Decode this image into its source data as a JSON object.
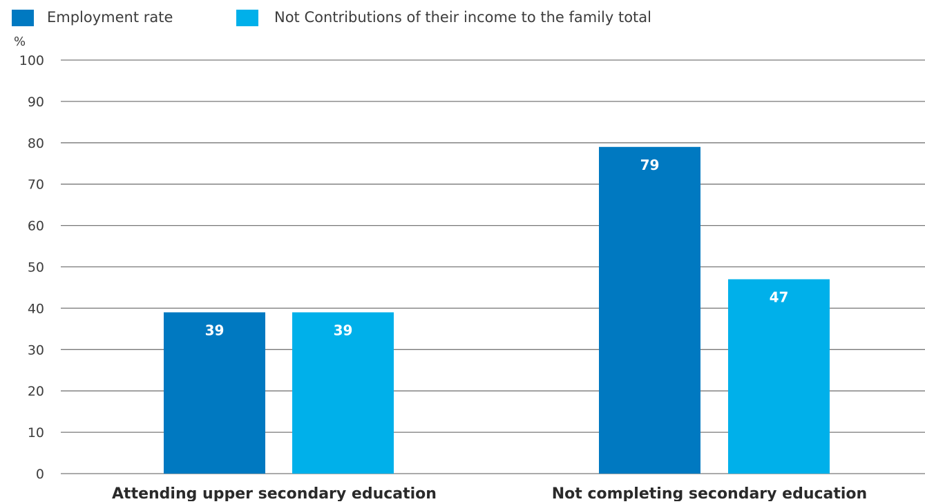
{
  "chart_data": {
    "type": "bar",
    "ylabel": "%",
    "ylim": [
      0,
      100
    ],
    "yticks": [
      0,
      10,
      20,
      30,
      40,
      50,
      60,
      70,
      80,
      90,
      100
    ],
    "grid": true,
    "legend_position": "top-left",
    "categories": [
      "Attending upper secondary education",
      "Not completing secondary education"
    ],
    "series": [
      {
        "name": "Employment rate",
        "values": [
          39,
          79
        ],
        "labels": [
          "39",
          "79"
        ],
        "color": "#0079c1"
      },
      {
        "name": "Not Contributions of their income to the family total",
        "values": [
          39,
          47
        ],
        "labels": [
          "39",
          "47"
        ],
        "color": "#00b0ea"
      }
    ]
  }
}
